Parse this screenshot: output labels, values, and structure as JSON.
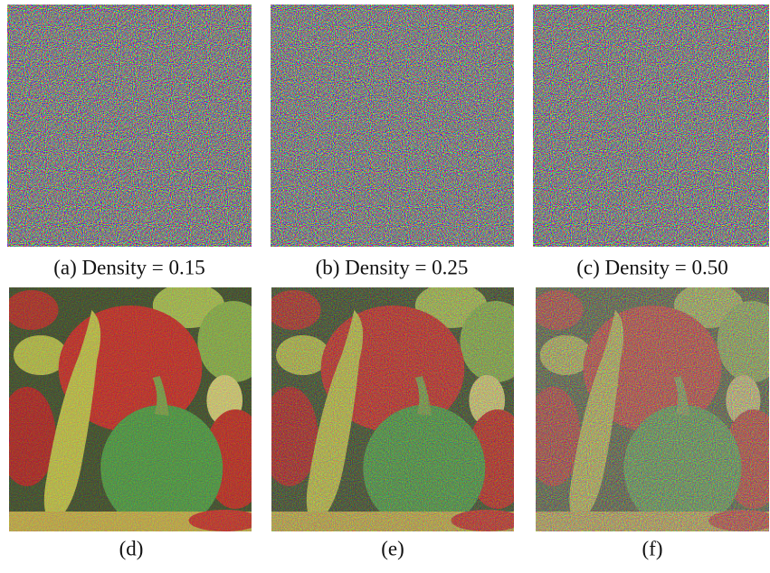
{
  "top_row": {
    "captions": [
      "(a) Density = 0.15",
      "(b) Density = 0.25",
      "(c) Density = 0.50"
    ]
  },
  "bottom_row": {
    "captions": [
      "(d)",
      "(e)",
      "(f)"
    ]
  }
}
